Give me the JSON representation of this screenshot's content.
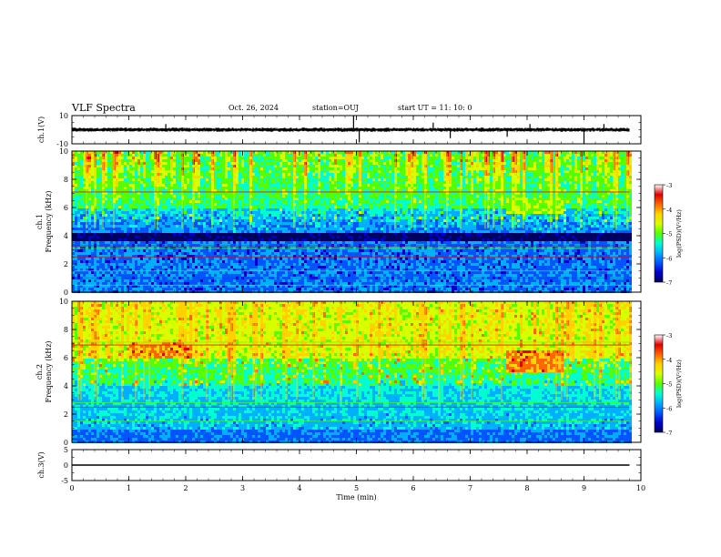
{
  "header": {
    "title": "VLF Spectra",
    "date": "Oct. 26, 2024",
    "station": "station=OUJ",
    "start_time": "start UT =  11: 10: 0"
  },
  "colormap": [
    "#000060",
    "#0000cc",
    "#0055ff",
    "#00b0ff",
    "#00ffd0",
    "#55ff00",
    "#d8ff00",
    "#ffd200",
    "#ff6600",
    "#e00000",
    "#ffffff"
  ],
  "chart_data": [
    {
      "type": "line",
      "name": "ch1-waveform",
      "ylabel": "ch.1(V)",
      "ylim": [
        -10,
        10
      ],
      "yticks": [
        10,
        -10
      ],
      "ytick_labels": [
        "10",
        "-10"
      ],
      "baseline": 0,
      "noise_amplitude": 1.5,
      "spikes": [
        {
          "t": 1.65,
          "v": 4
        },
        {
          "t": 4.95,
          "v": 10
        },
        {
          "t": 5.05,
          "v": -9
        },
        {
          "t": 6.35,
          "v": 5
        },
        {
          "t": 6.65,
          "v": -6
        },
        {
          "t": 7.65,
          "v": -5
        },
        {
          "t": 8.05,
          "v": 4
        },
        {
          "t": 9.0,
          "v": -10
        },
        {
          "t": 9.35,
          "v": 4
        }
      ]
    },
    {
      "type": "heatmap",
      "name": "ch1-spectrogram",
      "ylabel_line1": "ch.1",
      "ylabel_line2": "Frequency (kHz)",
      "ylim": [
        0,
        10
      ],
      "yticks": [
        0,
        2,
        4,
        6,
        8,
        10
      ],
      "ytick_labels": [
        "0",
        "2",
        "4",
        "6",
        "8",
        "10"
      ],
      "data_xlim": [
        0,
        9.8
      ],
      "colorbar": {
        "label": "log(PSD)(V²/Hz)",
        "range": [
          -7,
          -3
        ],
        "ticks": [
          "-3",
          "-4",
          "-5",
          "-6",
          "-7"
        ]
      },
      "dark_band_khz": [
        3.6,
        4.2
      ],
      "lines_khz": [
        0.5,
        1.0,
        1.5,
        2.5,
        3.1,
        3.3,
        6.9,
        7.1
      ],
      "emission_khz": [
        [
          7.6,
          8.6,
          5.6,
          6.8
        ]
      ]
    },
    {
      "type": "heatmap",
      "name": "ch2-spectrogram",
      "ylabel_line1": "ch.2",
      "ylabel_line2": "Frequency (kHz)",
      "ylim": [
        0,
        10
      ],
      "yticks": [
        0,
        2,
        4,
        6,
        8,
        10
      ],
      "ytick_labels": [
        "0",
        "2",
        "4",
        "6",
        "8",
        "10"
      ],
      "data_xlim": [
        0,
        9.8
      ],
      "colorbar": {
        "label": "log(PSD)(V²/Hz)",
        "range": [
          -7,
          -3
        ],
        "ticks": [
          "-3",
          "-4",
          "-5",
          "-6",
          "-7"
        ]
      },
      "lines_khz": [
        1.5,
        2.5,
        2.8,
        6.9,
        7.1
      ],
      "emission_khz": [
        [
          1.0,
          2.1,
          6.0,
          7.0
        ],
        [
          7.6,
          8.6,
          5.0,
          6.5
        ]
      ]
    },
    {
      "type": "line",
      "name": "ch3-waveform",
      "ylabel": "ch.3(V)",
      "ylim": [
        -5,
        5
      ],
      "yticks": [
        5,
        0,
        -5
      ],
      "ytick_labels": [
        "5",
        "0",
        "-5"
      ],
      "x": [
        0,
        9.8
      ],
      "y": [
        0,
        0
      ]
    }
  ],
  "xaxis": {
    "label": "Time (min)",
    "xlim": [
      0,
      10
    ],
    "ticks": [
      0,
      1,
      2,
      3,
      4,
      5,
      6,
      7,
      8,
      9,
      10
    ],
    "tick_labels": [
      "0",
      "1",
      "2",
      "3",
      "4",
      "5",
      "6",
      "7",
      "8",
      "9",
      "10"
    ]
  }
}
